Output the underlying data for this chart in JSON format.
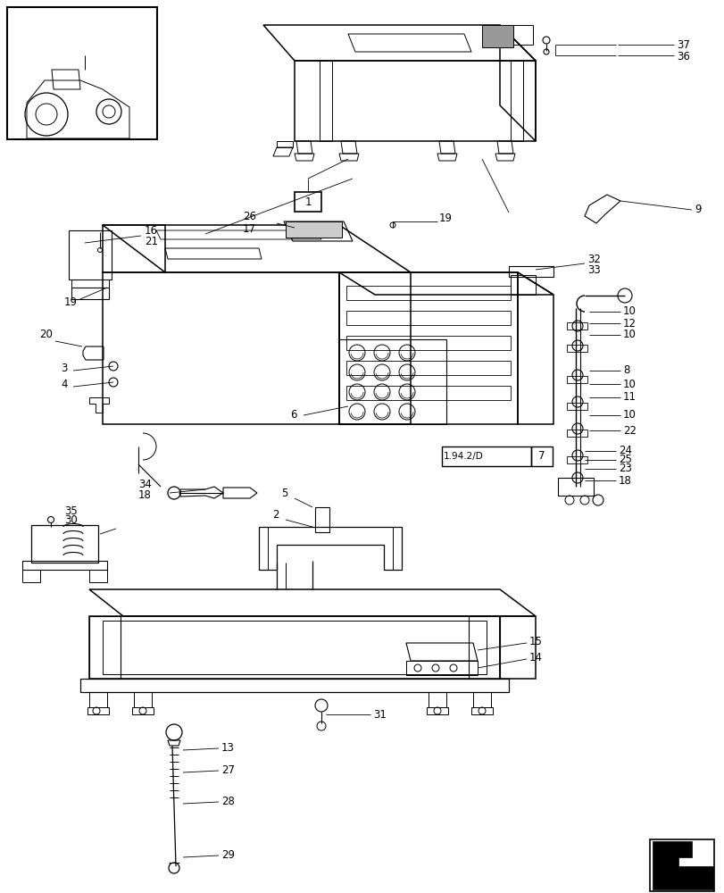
{
  "bg_color": "#ffffff",
  "line_color": "#000000",
  "fig_width": 8.12,
  "fig_height": 10.0,
  "dpi": 100,
  "lw_main": 1.1,
  "lw_thin": 0.7,
  "lw_leader": 0.6,
  "fs_label": 8.5
}
